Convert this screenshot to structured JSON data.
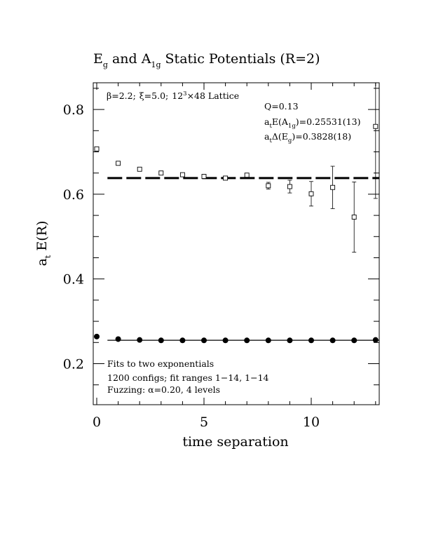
{
  "chart_data": {
    "type": "scatter",
    "title": {
      "base1": "E",
      "sub1": "g",
      "mid": " and A",
      "sub2": "1g",
      "rest": " Static Potentials (R=2)"
    },
    "xlabel": "time separation",
    "ylabel": {
      "base": "a",
      "sub": "t",
      "rest": " E(R)"
    },
    "xlim": [
      0,
      13
    ],
    "ylim": [
      0.1,
      0.855
    ],
    "x_ticks": [
      0,
      5,
      10
    ],
    "y_ticks": [
      0.2,
      0.4,
      0.6,
      0.8
    ],
    "x_tick_labels": [
      "0",
      "5",
      "10"
    ],
    "y_tick_labels": [
      "0.2",
      "0.4",
      "0.6",
      "0.8"
    ],
    "grid": false,
    "annotations": {
      "lattice": {
        "beta": "β=2.2;",
        "xi": "ξ=5.0;",
        "size": "12",
        "sup": "3",
        "rest": "×48 Lattice"
      },
      "q": "Q=0.13",
      "a1g_fit": {
        "a": "a",
        "t": "t",
        "mid": "E(A",
        "sub": "1g",
        "rest": ")=0.25531(13)"
      },
      "eg_fit": {
        "a": "a",
        "t": "t",
        "mid": "Δ(E",
        "sub": "g",
        "rest": ")=0.3828(18)"
      },
      "fits": "Fits to two exponentials",
      "configs": "1200 configs; fit ranges 1−14, 1−14",
      "fuzzing": "Fuzzing: α=0.20, 4 levels"
    },
    "series": [
      {
        "marker": "filled-circle",
        "x": [
          0,
          1,
          2,
          3,
          4,
          5,
          6,
          7,
          8,
          9,
          10,
          11,
          12,
          13
        ],
        "y": [
          0.264,
          0.258,
          0.256,
          0.255,
          0.255,
          0.255,
          0.255,
          0.255,
          0.255,
          0.255,
          0.255,
          0.255,
          0.255,
          0.256
        ],
        "err": [
          0.001,
          0.001,
          0.001,
          0.001,
          0.001,
          0.001,
          0.001,
          0.001,
          0.001,
          0.001,
          0.001,
          0.001,
          0.001,
          0.001
        ]
      },
      {
        "marker": "open-square",
        "x": [
          0,
          1,
          2,
          3,
          4,
          5,
          6,
          7,
          8,
          9,
          10,
          11,
          12,
          13
        ],
        "y": [
          0.707,
          0.673,
          0.659,
          0.65,
          0.646,
          0.642,
          0.638,
          0.645,
          0.62,
          0.618,
          0.601,
          0.616,
          0.546,
          0.76
        ],
        "err": [
          0.003,
          0.003,
          0.003,
          0.003,
          0.003,
          0.003,
          0.004,
          0.005,
          0.008,
          0.015,
          0.029,
          0.05,
          0.083,
          0.17
        ]
      }
    ],
    "fit_lines": [
      {
        "style": "solid",
        "x": [
          0.5,
          13
        ],
        "y": 0.2553
      },
      {
        "style": "dashed",
        "x": [
          0.5,
          13
        ],
        "y": 0.6381
      }
    ]
  }
}
